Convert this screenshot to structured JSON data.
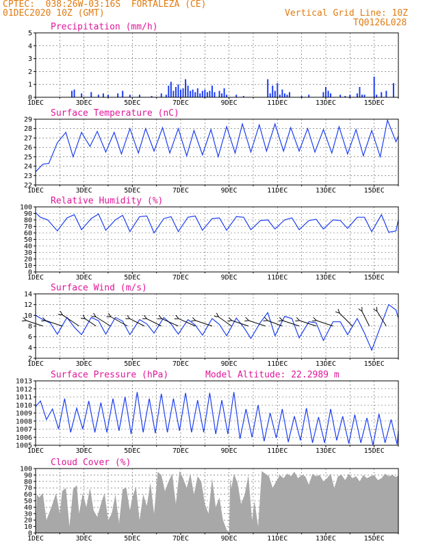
{
  "header": {
    "line1_left": "CPTEC:  038:26W-03:16S  FORTALEZA (CE)",
    "line2_left": "01DEC2020 10Z (GMT)",
    "line1_right": "Vertical Grid Line: 10Z",
    "line2_right": "TQ0126L028"
  },
  "colors": {
    "header": "#e07a10",
    "title": "#e0159a",
    "series": "#1a3df0",
    "cloud": "#a8a8a8",
    "arrow": "#000000"
  },
  "x_ticks": [
    "1DEC",
    "3DEC",
    "5DEC",
    "7DEC",
    "9DEC",
    "11DEC",
    "13DEC",
    "15DEC"
  ],
  "chart_data": [
    {
      "type": "bar",
      "title": "Precipitation (mm/h)",
      "ylim": [
        0,
        5
      ],
      "yticks": [
        "0",
        "1",
        "2",
        "3",
        "4",
        "5"
      ],
      "x": [
        2.5,
        2.6,
        2.9,
        3.3,
        3.6,
        3.8,
        4.0,
        4.4,
        4.6,
        4.9,
        5.3,
        5.8,
        6.2,
        6.4,
        6.5,
        6.6,
        6.7,
        6.8,
        6.9,
        7.0,
        7.1,
        7.2,
        7.3,
        7.4,
        7.5,
        7.6,
        7.7,
        7.8,
        7.9,
        8.0,
        8.1,
        8.2,
        8.3,
        8.4,
        8.6,
        8.7,
        8.8,
        8.9,
        9.3,
        9.6,
        10.6,
        10.7,
        10.8,
        10.9,
        11.0,
        11.1,
        11.2,
        11.3,
        11.4,
        11.5,
        12.0,
        12.3,
        12.9,
        13.0,
        13.1,
        13.2,
        13.6,
        13.8,
        14.0,
        14.3,
        14.4,
        14.5,
        14.6,
        15.0,
        15.1,
        15.3,
        15.5,
        15.8
      ],
      "values": [
        0.5,
        0.6,
        0.3,
        0.4,
        0.2,
        0.3,
        0.2,
        0.3,
        0.5,
        0.2,
        0.2,
        0.1,
        0.3,
        0.2,
        0.9,
        1.2,
        0.5,
        0.8,
        1.0,
        0.6,
        0.7,
        1.4,
        0.9,
        0.5,
        0.6,
        0.4,
        0.7,
        0.3,
        0.5,
        0.6,
        0.4,
        0.5,
        0.9,
        0.4,
        0.5,
        0.3,
        0.7,
        0.2,
        0.2,
        0.1,
        1.4,
        0.3,
        0.9,
        0.5,
        1.1,
        0.2,
        0.6,
        0.3,
        0.2,
        0.4,
        0.1,
        0.2,
        0.4,
        0.8,
        0.5,
        0.3,
        0.2,
        0.1,
        0.2,
        0.3,
        0.8,
        0.2,
        0.2,
        1.6,
        0.2,
        0.4,
        0.5,
        1.1
      ]
    },
    {
      "type": "line",
      "title": "Surface Temperature (nC)",
      "ylim": [
        22,
        29
      ],
      "yticks": [
        "22",
        "23",
        "24",
        "25",
        "26",
        "27",
        "28",
        "29"
      ],
      "x": [
        1.0,
        1.3,
        1.55,
        1.9,
        2.25,
        2.55,
        2.9,
        3.25,
        3.55,
        3.9,
        4.25,
        4.55,
        4.9,
        5.25,
        5.55,
        5.9,
        6.25,
        6.55,
        6.9,
        7.25,
        7.55,
        7.9,
        8.25,
        8.55,
        8.9,
        9.25,
        9.55,
        9.9,
        10.25,
        10.55,
        10.9,
        11.25,
        11.55,
        11.9,
        12.25,
        12.55,
        12.9,
        13.25,
        13.55,
        13.9,
        14.25,
        14.55,
        14.9,
        15.25,
        15.55,
        15.9,
        16.0
      ],
      "values": [
        23.4,
        24.2,
        24.3,
        26.5,
        27.6,
        25.0,
        27.6,
        26.1,
        27.7,
        25.5,
        27.6,
        25.3,
        28.0,
        25.4,
        28.0,
        25.6,
        28.1,
        25.4,
        28.0,
        25.1,
        27.8,
        25.2,
        27.9,
        25.0,
        28.2,
        25.4,
        28.5,
        25.5,
        28.4,
        25.6,
        28.5,
        25.6,
        28.1,
        25.6,
        28.0,
        25.5,
        27.9,
        25.4,
        28.2,
        25.3,
        27.9,
        25.1,
        27.8,
        25.0,
        28.9,
        26.6,
        27.2
      ]
    },
    {
      "type": "line",
      "title": "Relative Humidity (%)",
      "ylim": [
        0,
        100
      ],
      "yticks": [
        "0",
        "10",
        "20",
        "30",
        "40",
        "50",
        "60",
        "70",
        "80",
        "90",
        "100"
      ],
      "x": [
        1.0,
        1.2,
        1.5,
        1.9,
        2.3,
        2.6,
        2.9,
        3.3,
        3.6,
        3.9,
        4.3,
        4.6,
        4.9,
        5.3,
        5.6,
        5.9,
        6.3,
        6.6,
        6.9,
        7.3,
        7.6,
        7.9,
        8.3,
        8.6,
        8.9,
        9.3,
        9.6,
        9.9,
        10.3,
        10.6,
        10.9,
        11.3,
        11.6,
        11.9,
        12.3,
        12.6,
        12.9,
        13.3,
        13.6,
        13.9,
        14.3,
        14.6,
        14.9,
        15.3,
        15.6,
        15.9,
        16.0
      ],
      "values": [
        91,
        84,
        80,
        63,
        83,
        88,
        65,
        82,
        89,
        64,
        80,
        87,
        62,
        85,
        86,
        60,
        82,
        85,
        62,
        84,
        86,
        64,
        82,
        83,
        64,
        85,
        84,
        65,
        79,
        80,
        66,
        80,
        83,
        65,
        79,
        81,
        66,
        80,
        79,
        67,
        84,
        84,
        62,
        88,
        61,
        63,
        80
      ]
    },
    {
      "type": "line",
      "title": "Surface Wind (m/s)",
      "ylim": [
        2,
        14
      ],
      "yticks": [
        "2",
        "4",
        "6",
        "8",
        "10",
        "12",
        "14"
      ],
      "x": [
        1.0,
        1.3,
        1.6,
        1.9,
        2.3,
        2.6,
        2.9,
        3.3,
        3.6,
        3.9,
        4.3,
        4.6,
        4.9,
        5.3,
        5.6,
        5.9,
        6.3,
        6.6,
        6.9,
        7.3,
        7.6,
        7.9,
        8.3,
        8.6,
        8.9,
        9.3,
        9.6,
        9.9,
        10.3,
        10.6,
        10.9,
        11.3,
        11.6,
        11.9,
        12.3,
        12.6,
        12.9,
        13.3,
        13.6,
        13.9,
        14.3,
        14.6,
        14.9,
        15.3,
        15.6,
        15.9,
        16.0
      ],
      "values": [
        10.0,
        9.2,
        8.6,
        6.5,
        9.6,
        7.8,
        6.4,
        9.6,
        9.0,
        6.5,
        9.6,
        8.9,
        6.4,
        9.2,
        8.4,
        6.7,
        9.6,
        8.4,
        6.5,
        9.2,
        8.2,
        6.3,
        9.4,
        8.3,
        6.2,
        9.5,
        7.8,
        5.7,
        8.7,
        10.5,
        6.2,
        9.8,
        9.4,
        5.8,
        8.8,
        8.6,
        5.3,
        8.8,
        8.8,
        6.4,
        9.4,
        6.7,
        3.5,
        8.4,
        12.0,
        11.0,
        9.5
      ],
      "vectors": {
        "x": [
          1.3,
          2.1,
          2.8,
          3.5,
          4.1,
          4.8,
          5.5,
          6.2,
          6.9,
          7.6,
          8.3,
          9.1,
          9.8,
          10.5,
          11.2,
          11.9,
          12.6,
          13.3,
          14.1,
          14.8,
          15.5
        ],
        "u": [
          -0.9,
          -0.9,
          -0.9,
          -0.6,
          -0.8,
          -0.9,
          -0.8,
          -0.8,
          -0.9,
          -0.9,
          -0.9,
          -0.7,
          -0.9,
          -0.9,
          -0.8,
          -0.9,
          -0.9,
          -0.9,
          -0.7,
          -0.4,
          -0.5
        ],
        "v": [
          0.3,
          0.3,
          0.6,
          0.4,
          0.5,
          0.5,
          0.4,
          0.4,
          0.4,
          0.4,
          0.3,
          0.5,
          0.3,
          0.3,
          0.3,
          0.3,
          0.3,
          0.3,
          0.7,
          0.8,
          0.8
        ]
      }
    },
    {
      "type": "line",
      "title": "Surface Pressure (hPa)",
      "annotation": "Model Altitude: 22.2989 m",
      "ylim": [
        1005,
        1013
      ],
      "yticks": [
        "1005",
        "1006",
        "1007",
        "1008",
        "1009",
        "1010",
        "1011",
        "1012",
        "1013"
      ],
      "x": [
        1.0,
        1.2,
        1.45,
        1.7,
        1.95,
        2.2,
        2.45,
        2.7,
        2.95,
        3.2,
        3.45,
        3.7,
        3.95,
        4.2,
        4.45,
        4.7,
        4.95,
        5.2,
        5.45,
        5.7,
        5.95,
        6.2,
        6.45,
        6.7,
        6.95,
        7.2,
        7.45,
        7.7,
        7.95,
        8.2,
        8.45,
        8.7,
        8.95,
        9.2,
        9.45,
        9.7,
        9.95,
        10.2,
        10.45,
        10.7,
        10.95,
        11.2,
        11.45,
        11.7,
        11.95,
        12.2,
        12.45,
        12.7,
        12.95,
        13.2,
        13.45,
        13.7,
        13.95,
        14.2,
        14.45,
        14.7,
        14.95,
        15.2,
        15.45,
        15.7,
        15.95,
        16.0
      ],
      "values": [
        1009.8,
        1010.5,
        1008.2,
        1009.5,
        1007.0,
        1010.8,
        1006.6,
        1009.6,
        1007.0,
        1010.5,
        1006.6,
        1010.3,
        1006.6,
        1010.8,
        1006.8,
        1011.0,
        1006.4,
        1011.6,
        1006.6,
        1010.8,
        1006.5,
        1011.4,
        1006.6,
        1010.8,
        1006.8,
        1011.5,
        1006.6,
        1010.6,
        1006.6,
        1011.5,
        1006.4,
        1010.6,
        1006.4,
        1011.6,
        1005.8,
        1009.5,
        1006.0,
        1010.0,
        1005.5,
        1009.0,
        1005.9,
        1009.5,
        1005.4,
        1008.6,
        1005.6,
        1009.6,
        1005.3,
        1008.5,
        1005.3,
        1009.5,
        1005.6,
        1008.6,
        1005.2,
        1008.8,
        1005.3,
        1008.4,
        1005.0,
        1008.9,
        1005.3,
        1008.2,
        1005.1,
        1006.8
      ]
    },
    {
      "type": "area",
      "title": "Cloud Cover (%)",
      "ylim": [
        0,
        100
      ],
      "yticks": [
        "0",
        "10",
        "20",
        "30",
        "40",
        "50",
        "60",
        "70",
        "80",
        "90",
        "100"
      ],
      "x": [
        1.0,
        1.05,
        1.15,
        1.3,
        1.45,
        1.6,
        1.7,
        1.85,
        2.0,
        2.1,
        2.25,
        2.4,
        2.55,
        2.7,
        2.8,
        2.95,
        3.1,
        3.25,
        3.4,
        3.55,
        3.7,
        3.85,
        4.0,
        4.15,
        4.3,
        4.45,
        4.6,
        4.75,
        4.9,
        5.0,
        5.15,
        5.3,
        5.45,
        5.6,
        5.75,
        5.9,
        6.05,
        6.2,
        6.35,
        6.5,
        6.65,
        6.8,
        6.95,
        7.1,
        7.25,
        7.4,
        7.55,
        7.7,
        7.85,
        8.0,
        8.15,
        8.3,
        8.45,
        8.6,
        8.75,
        8.9,
        9.0,
        9.05,
        9.1,
        9.2,
        9.35,
        9.5,
        9.65,
        9.8,
        9.95,
        10.05,
        10.2,
        10.35,
        10.5,
        10.65,
        10.8,
        10.95,
        11.1,
        11.25,
        11.4,
        11.55,
        11.7,
        11.85,
        12.0,
        12.15,
        12.3,
        12.45,
        12.6,
        12.75,
        12.9,
        13.05,
        13.2,
        13.35,
        13.5,
        13.65,
        13.8,
        13.95,
        14.1,
        14.25,
        14.4,
        14.55,
        14.7,
        14.85,
        15.0,
        15.15,
        15.3,
        15.45,
        15.6,
        15.75,
        15.9,
        16.0
      ],
      "values": [
        2,
        60,
        55,
        62,
        20,
        35,
        45,
        62,
        30,
        65,
        70,
        10,
        68,
        74,
        30,
        62,
        40,
        70,
        35,
        25,
        45,
        62,
        20,
        30,
        60,
        15,
        68,
        70,
        35,
        55,
        72,
        20,
        60,
        42,
        78,
        30,
        95,
        90,
        65,
        80,
        92,
        45,
        96,
        85,
        70,
        92,
        60,
        88,
        80,
        45,
        30,
        85,
        40,
        55,
        20,
        5,
        1,
        85,
        70,
        92,
        78,
        45,
        60,
        90,
        20,
        50,
        10,
        96,
        92,
        88,
        70,
        80,
        90,
        85,
        92,
        88,
        95,
        85,
        90,
        88,
        75,
        92,
        88,
        90,
        80,
        85,
        92,
        70,
        88,
        90,
        82,
        92,
        85,
        88,
        80,
        90,
        85,
        88,
        90,
        82,
        85,
        92,
        88,
        90,
        87,
        89
      ]
    }
  ]
}
